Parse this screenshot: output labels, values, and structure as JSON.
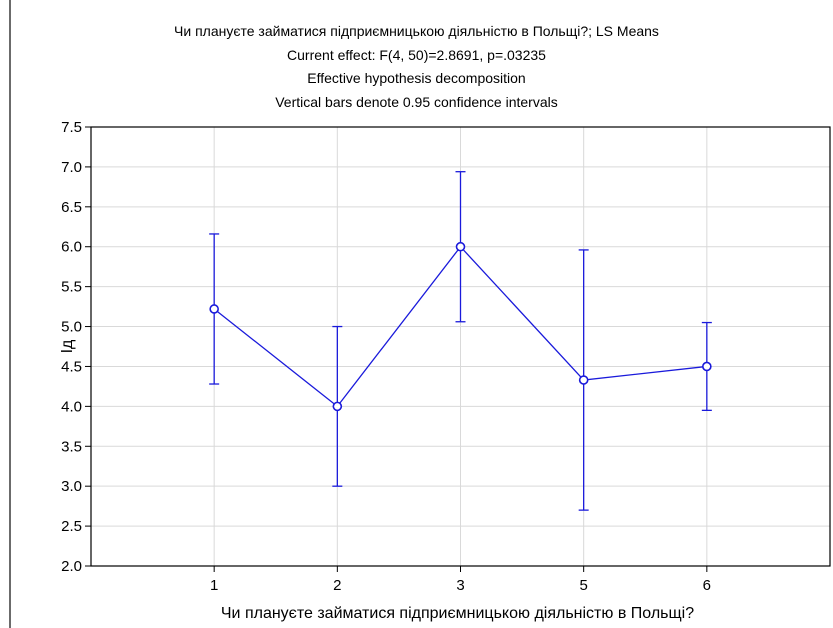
{
  "window": {
    "title_lines": [
      "Чи плануєте займатися підприємницькою діяльністю в Польщі?; LS Means",
      "Current effect: F(4, 50)=2.8691, p=.03235",
      "Effective hypothesis decomposition",
      "Vertical bars denote 0.95 confidence intervals"
    ]
  },
  "chart_data": {
    "type": "line",
    "title": "Чи плануєте займатися підприємницькою діяльністю в Польщі?; LS Means",
    "subtitle": [
      "Current effect: F(4, 50)=2.8691, p=.03235",
      "Effective hypothesis decomposition",
      "Vertical bars denote 0.95 confidence intervals"
    ],
    "xlabel": "Чи плануєте займатися підприємницькою діяльністю в Польщі?",
    "ylabel": "Ід",
    "categories": [
      "1",
      "2",
      "3",
      "5",
      "6"
    ],
    "ylim": [
      2.0,
      7.5
    ],
    "y_ticks": [
      "2.0",
      "2.5",
      "3.0",
      "3.5",
      "4.0",
      "4.5",
      "5.0",
      "5.5",
      "6.0",
      "6.5",
      "7.0",
      "7.5"
    ],
    "grid": true,
    "legend": "none",
    "series": [
      {
        "values": [
          5.22,
          4.0,
          6.0,
          4.33,
          4.5
        ],
        "ci_lower": [
          4.28,
          3.0,
          5.06,
          2.7,
          3.95
        ],
        "ci_upper": [
          6.16,
          5.0,
          6.94,
          5.96,
          5.05
        ],
        "color": "#1a1adb"
      }
    ]
  }
}
